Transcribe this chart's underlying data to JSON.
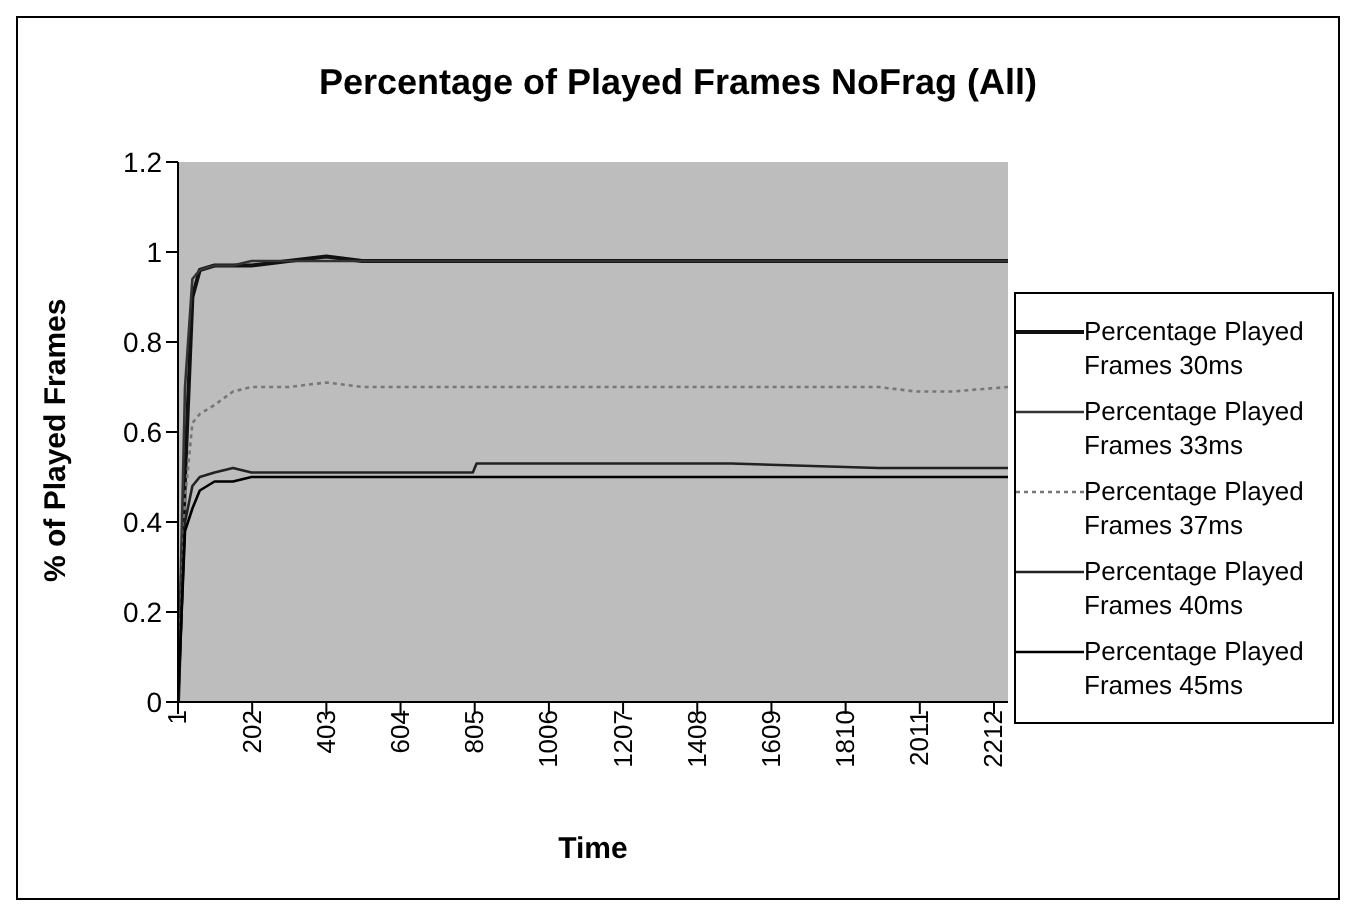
{
  "chart_data": {
    "type": "line",
    "title": "Percentage of Played Frames NoFrag (All)",
    "xlabel": "Time",
    "ylabel": "% of Played Frames",
    "x": [
      1,
      20,
      40,
      60,
      100,
      150,
      200,
      300,
      403,
      500,
      700,
      800,
      810,
      1000,
      1500,
      1900,
      2000,
      2100,
      2250
    ],
    "xlim": [
      1,
      2250
    ],
    "xticks": [
      1,
      202,
      403,
      604,
      805,
      1006,
      1207,
      1408,
      1609,
      1810,
      2011,
      2212
    ],
    "ylim": [
      0,
      1.2
    ],
    "yticks": [
      0,
      0.2,
      0.4,
      0.6,
      0.8,
      1,
      1.2
    ],
    "grid": false,
    "legend": "right",
    "marker": "none",
    "line_style": "solid",
    "series": [
      {
        "name": "Percentage Played Frames 30ms",
        "color": "#111111",
        "values": [
          0,
          0.5,
          0.9,
          0.96,
          0.97,
          0.97,
          0.97,
          0.98,
          0.99,
          0.98,
          0.98,
          0.98,
          0.98,
          0.98,
          0.98,
          0.98,
          0.98,
          0.98,
          0.98
        ]
      },
      {
        "name": "Percentage Played Frames 33ms",
        "color": "#333333",
        "values": [
          0,
          0.7,
          0.94,
          0.96,
          0.97,
          0.97,
          0.98,
          0.98,
          0.98,
          0.98,
          0.98,
          0.98,
          0.98,
          0.98,
          0.98,
          0.98,
          0.98,
          0.98,
          0.98
        ]
      },
      {
        "name": "Percentage Played Frames 37ms",
        "color": "#777777",
        "line_style": "dotted",
        "values": [
          0,
          0.45,
          0.62,
          0.64,
          0.66,
          0.69,
          0.7,
          0.7,
          0.71,
          0.7,
          0.7,
          0.7,
          0.7,
          0.7,
          0.7,
          0.7,
          0.69,
          0.69,
          0.7
        ]
      },
      {
        "name": "Percentage Played Frames 40ms",
        "color": "#222222",
        "values": [
          0,
          0.4,
          0.48,
          0.5,
          0.51,
          0.52,
          0.51,
          0.51,
          0.51,
          0.51,
          0.51,
          0.51,
          0.53,
          0.53,
          0.53,
          0.52,
          0.52,
          0.52,
          0.52
        ]
      },
      {
        "name": "Percentage Played Frames 45ms",
        "color": "#000000",
        "values": [
          0,
          0.38,
          0.43,
          0.47,
          0.49,
          0.49,
          0.5,
          0.5,
          0.5,
          0.5,
          0.5,
          0.5,
          0.5,
          0.5,
          0.5,
          0.5,
          0.5,
          0.5,
          0.5
        ]
      }
    ]
  }
}
